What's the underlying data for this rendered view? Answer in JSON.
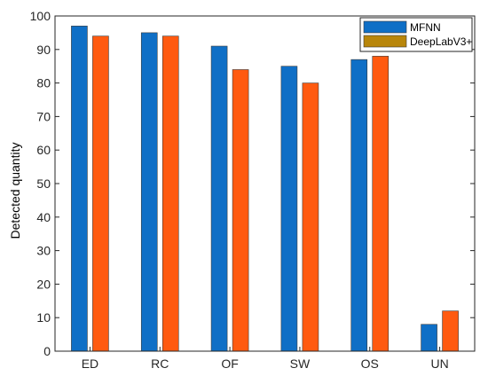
{
  "chart_data": {
    "type": "bar",
    "title": "",
    "xlabel": "",
    "ylabel": "Detected quantity",
    "categories": [
      "ED",
      "RC",
      "OF",
      "SW",
      "OS",
      "UN"
    ],
    "ylim": [
      0,
      100
    ],
    "yticks": [
      0,
      10,
      20,
      30,
      40,
      50,
      60,
      70,
      80,
      90,
      100
    ],
    "grid": false,
    "legend": "top-right",
    "series": [
      {
        "name": "MFNN",
        "color": "#0f6fc6",
        "values": [
          97,
          95,
          91,
          85,
          87,
          8
        ]
      },
      {
        "name": "DeepLabV3+",
        "color": "#ff5a10",
        "legend_color": "#b8860b",
        "values": [
          94,
          94,
          84,
          80,
          88,
          12
        ]
      }
    ]
  }
}
